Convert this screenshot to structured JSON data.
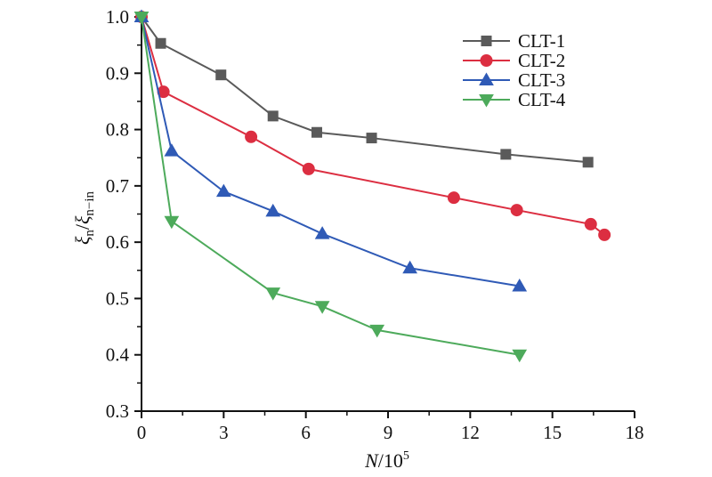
{
  "chart_data": {
    "type": "line",
    "title": "",
    "xlabel": "N/10⁵",
    "xlabel_parts": {
      "var": "N",
      "base": "/10",
      "exp": "5"
    },
    "ylabel": "ξn/ξn−in",
    "ylabel_parts": {
      "num": "ξ",
      "num_sub": "n",
      "sep": "/",
      "den": "ξ",
      "den_sub": "n−in"
    },
    "xlim": [
      0,
      18
    ],
    "ylim": [
      0.3,
      1.0
    ],
    "xticks": [
      0,
      3,
      6,
      9,
      12,
      15,
      18
    ],
    "xtick_labels": [
      "0",
      "3",
      "6",
      "9",
      "12",
      "15",
      "18"
    ],
    "yticks": [
      0.3,
      0.4,
      0.5,
      0.6,
      0.7,
      0.8,
      0.9,
      1.0
    ],
    "ytick_labels": [
      "0.3",
      "0.4",
      "0.5",
      "0.6",
      "0.7",
      "0.8",
      "0.9",
      "1.0"
    ],
    "grid": false,
    "legend_position": "top-right",
    "series": [
      {
        "name": "CLT-1",
        "color": "#5a5a5a",
        "marker": "square",
        "x": [
          0,
          0.7,
          2.9,
          4.8,
          6.4,
          8.4,
          13.3,
          16.3
        ],
        "y": [
          1.0,
          0.953,
          0.897,
          0.824,
          0.795,
          0.785,
          0.756,
          0.742
        ]
      },
      {
        "name": "CLT-2",
        "color": "#dc2e41",
        "marker": "circle",
        "x": [
          0,
          0.8,
          4.0,
          6.1,
          11.4,
          13.7,
          16.4,
          16.9
        ],
        "y": [
          1.0,
          0.867,
          0.787,
          0.73,
          0.679,
          0.657,
          0.632,
          0.613
        ]
      },
      {
        "name": "CLT-3",
        "color": "#2f5ab6",
        "marker": "triangle-up",
        "x": [
          0,
          1.1,
          3.0,
          4.8,
          6.6,
          9.8,
          13.8
        ],
        "y": [
          1.0,
          0.762,
          0.69,
          0.655,
          0.615,
          0.554,
          0.522
        ]
      },
      {
        "name": "CLT-4",
        "color": "#4daa5b",
        "marker": "triangle-down",
        "x": [
          0,
          1.1,
          4.8,
          6.6,
          8.6,
          13.8
        ],
        "y": [
          1.0,
          0.637,
          0.51,
          0.486,
          0.444,
          0.4
        ]
      }
    ]
  }
}
